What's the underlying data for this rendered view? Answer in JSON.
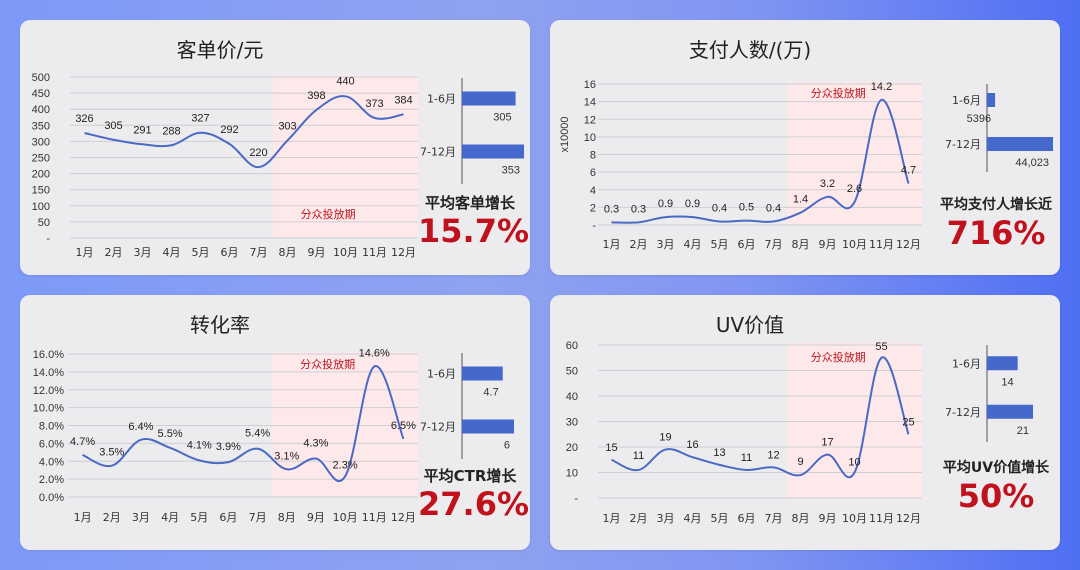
{
  "campaign_label": "分众投放期",
  "colors": {
    "line": "#4a69c4",
    "bar": "#4468cb",
    "highlight": "#c0121c",
    "shade": "#fde9ea"
  },
  "cards": [
    {
      "title": "客单价/元",
      "stat_label": "平均客单增长",
      "stat_value": "15.7%",
      "chart_data": {
        "type": "line",
        "categories": [
          "1月",
          "2月",
          "3月",
          "4月",
          "5月",
          "6月",
          "7月",
          "8月",
          "9月",
          "10月",
          "11月",
          "12月"
        ],
        "values": [
          326,
          305,
          291,
          288,
          327,
          292,
          220,
          303,
          398,
          440,
          373,
          384
        ],
        "value_labels": [
          "326",
          "305",
          "291",
          "288",
          "327",
          "292",
          "220",
          "303",
          "398",
          "440",
          "373",
          "384"
        ],
        "ylim": [
          0,
          500
        ],
        "yticks": [
          "-",
          "50",
          "100",
          "150",
          "200",
          "250",
          "300",
          "350",
          "400",
          "450",
          "500"
        ],
        "unit_label": "",
        "bars": {
          "type": "bar",
          "categories": [
            "1-6月",
            "7-12月"
          ],
          "values": [
            305,
            353
          ],
          "value_labels": [
            "305",
            "353"
          ]
        }
      }
    },
    {
      "title": "支付人数/(万)",
      "stat_label": "平均支付人增长近",
      "stat_value": "716%",
      "chart_data": {
        "type": "line",
        "categories": [
          "1月",
          "2月",
          "3月",
          "4月",
          "5月",
          "6月",
          "7月",
          "8月",
          "9月",
          "10月",
          "11月",
          "12月"
        ],
        "values": [
          0.3,
          0.3,
          0.9,
          0.9,
          0.4,
          0.5,
          0.4,
          1.4,
          3.2,
          2.6,
          14.2,
          4.7
        ],
        "value_labels": [
          "0.3",
          "0.3",
          "0.9",
          "0.9",
          "0.4",
          "0.5",
          "0.4",
          "1.4",
          "3.2",
          "2.6",
          "14.2",
          "4.7"
        ],
        "ylim": [
          0,
          16
        ],
        "yticks": [
          "-",
          "2",
          "4",
          "6",
          "8",
          "10",
          "12",
          "14",
          "16"
        ],
        "unit_label": "x10000",
        "bars": {
          "type": "bar",
          "categories": [
            "1-6月",
            "7-12月"
          ],
          "values": [
            5396,
            44023
          ],
          "value_labels": [
            "5396",
            "44,023"
          ]
        }
      }
    },
    {
      "title": "转化率",
      "stat_label": "平均CTR增长",
      "stat_value": "27.6%",
      "chart_data": {
        "type": "line",
        "categories": [
          "1月",
          "2月",
          "3月",
          "4月",
          "5月",
          "6月",
          "7月",
          "8月",
          "9月",
          "10月",
          "11月",
          "12月"
        ],
        "values": [
          4.7,
          3.5,
          6.4,
          5.5,
          4.1,
          3.9,
          5.4,
          3.1,
          4.3,
          2.3,
          14.6,
          6.5
        ],
        "value_labels": [
          "4.7%",
          "3.5%",
          "6.4%",
          "5.5%",
          "4.1%",
          "3.9%",
          "5.4%",
          "3.1%",
          "4.3%",
          "2.3%",
          "14.6%",
          "6.5%"
        ],
        "ylim": [
          0,
          16
        ],
        "yticks": [
          "0.0%",
          "2.0%",
          "4.0%",
          "6.0%",
          "8.0%",
          "10.0%",
          "12.0%",
          "14.0%",
          "16.0%"
        ],
        "unit_label": "",
        "bars": {
          "type": "bar",
          "categories": [
            "1-6月",
            "7-12月"
          ],
          "values": [
            4.7,
            6
          ],
          "value_labels": [
            "4.7",
            "6"
          ]
        }
      }
    },
    {
      "title": "UV价值",
      "stat_label": "平均UV价值增长",
      "stat_value": "50%",
      "chart_data": {
        "type": "line",
        "categories": [
          "1月",
          "2月",
          "3月",
          "4月",
          "5月",
          "6月",
          "7月",
          "8月",
          "9月",
          "10月",
          "11月",
          "12月"
        ],
        "values": [
          15,
          11,
          19,
          16,
          13,
          11,
          12,
          9,
          17,
          10,
          55,
          25
        ],
        "value_labels": [
          "15",
          "11",
          "19",
          "16",
          "13",
          "11",
          "12",
          "9",
          "17",
          "10",
          "55",
          "25"
        ],
        "ylim": [
          0,
          60
        ],
        "yticks": [
          "-",
          "10",
          "20",
          "30",
          "40",
          "50",
          "60"
        ],
        "unit_label": "",
        "bars": {
          "type": "bar",
          "categories": [
            "1-6月",
            "7-12月"
          ],
          "values": [
            14,
            21
          ],
          "value_labels": [
            "14",
            "21"
          ]
        }
      }
    }
  ]
}
